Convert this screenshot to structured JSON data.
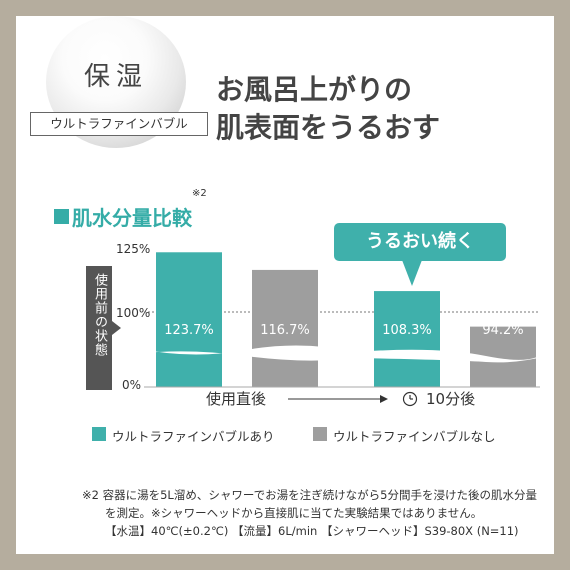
{
  "badge": {
    "main": "保湿",
    "sub": "ウルトラファインバブル"
  },
  "headline": {
    "line1": "お風呂上がりの",
    "line2": "肌表面をうるおす"
  },
  "section": {
    "title": "肌水分量比較",
    "footnote_ref": "※2"
  },
  "callout": {
    "text": "うるおい続く"
  },
  "y_axis_label": "使用前の状態",
  "chart_data": {
    "type": "bar",
    "categories": [
      "使用直後",
      "10分後"
    ],
    "series": [
      {
        "name": "ウルトラファインバブルあり",
        "values": [
          123.7,
          108.3
        ],
        "labels": [
          "123.7%",
          "108.3%"
        ],
        "color": "#3fb0ab"
      },
      {
        "name": "ウルトラファインバブルなし",
        "values": [
          116.7,
          94.2
        ],
        "labels": [
          "116.7%",
          "94.2%"
        ],
        "color": "#9e9e9e"
      }
    ],
    "y_ticks": [
      "125%",
      "100%",
      "0%"
    ],
    "axis_break": true,
    "reference_line": 100,
    "legend_position": "bottom"
  },
  "legend": [
    {
      "label": "ウルトラファインバブルあり",
      "color": "#3fb0ab"
    },
    {
      "label": "ウルトラファインバブルなし",
      "color": "#9e9e9e"
    }
  ],
  "footnote": {
    "line1": "※2 容器に湯を5L溜め、シャワーでお湯を注ぎ続けながら5分間手を浸けた後の肌水分量",
    "line2": "を測定。※シャワーヘッドから直接肌に当てた実験結果ではありません。",
    "line3": "【水温】40℃(±0.2℃) 【流量】6L/min 【シャワーヘッド】S39-80X (N=11)"
  },
  "colors": {
    "accent": "#3fb0ab",
    "gray_bar": "#9e9e9e",
    "frame": "#b5ad9e",
    "label_box": "#555555"
  },
  "icons": {
    "timer": "clock-icon"
  }
}
